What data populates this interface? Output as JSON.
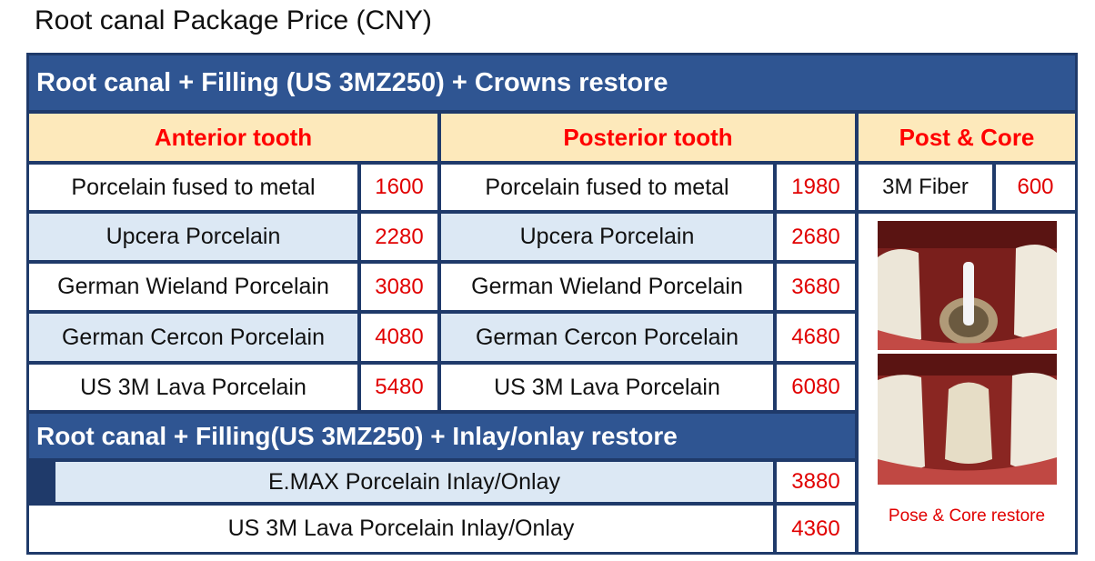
{
  "title": "Root canal Package Price (CNY)",
  "crowns_section": {
    "header": "Root canal + Filling (US 3MZ250) + Crowns restore",
    "anterior_header": "Anterior tooth",
    "posterior_header": "Posterior tooth",
    "post_core_header": "Post & Core",
    "rows": [
      {
        "anterior_name": "Porcelain fused to metal",
        "anterior_price": "1600",
        "posterior_name": "Porcelain fused to metal",
        "posterior_price": "1980"
      },
      {
        "anterior_name": "Upcera Porcelain",
        "anterior_price": "2280",
        "posterior_name": "Upcera Porcelain",
        "posterior_price": "2680"
      },
      {
        "anterior_name": "German Wieland Porcelain",
        "anterior_price": "3080",
        "posterior_name": "German Wieland Porcelain",
        "posterior_price": "3680"
      },
      {
        "anterior_name": "German Cercon Porcelain",
        "anterior_price": "4080",
        "posterior_name": "German Cercon Porcelain",
        "posterior_price": "4680"
      },
      {
        "anterior_name": "US 3M Lava Porcelain",
        "anterior_price": "5480",
        "posterior_name": "US 3M Lava Porcelain",
        "posterior_price": "6080"
      }
    ],
    "post_core": {
      "name": "3M Fiber",
      "price": "600"
    }
  },
  "inlay_section": {
    "header": "Root canal + Filling(US 3MZ250) + Inlay/onlay restore",
    "rows": [
      {
        "name": "E.MAX Porcelain  Inlay/Onlay",
        "price": "3880"
      },
      {
        "name": "US 3M Lava Porcelain   Inlay/Onlay",
        "price": "4360"
      }
    ]
  },
  "photo": {
    "icon": "tooth-post-core-photo",
    "caption": "Pose & Core restore"
  }
}
